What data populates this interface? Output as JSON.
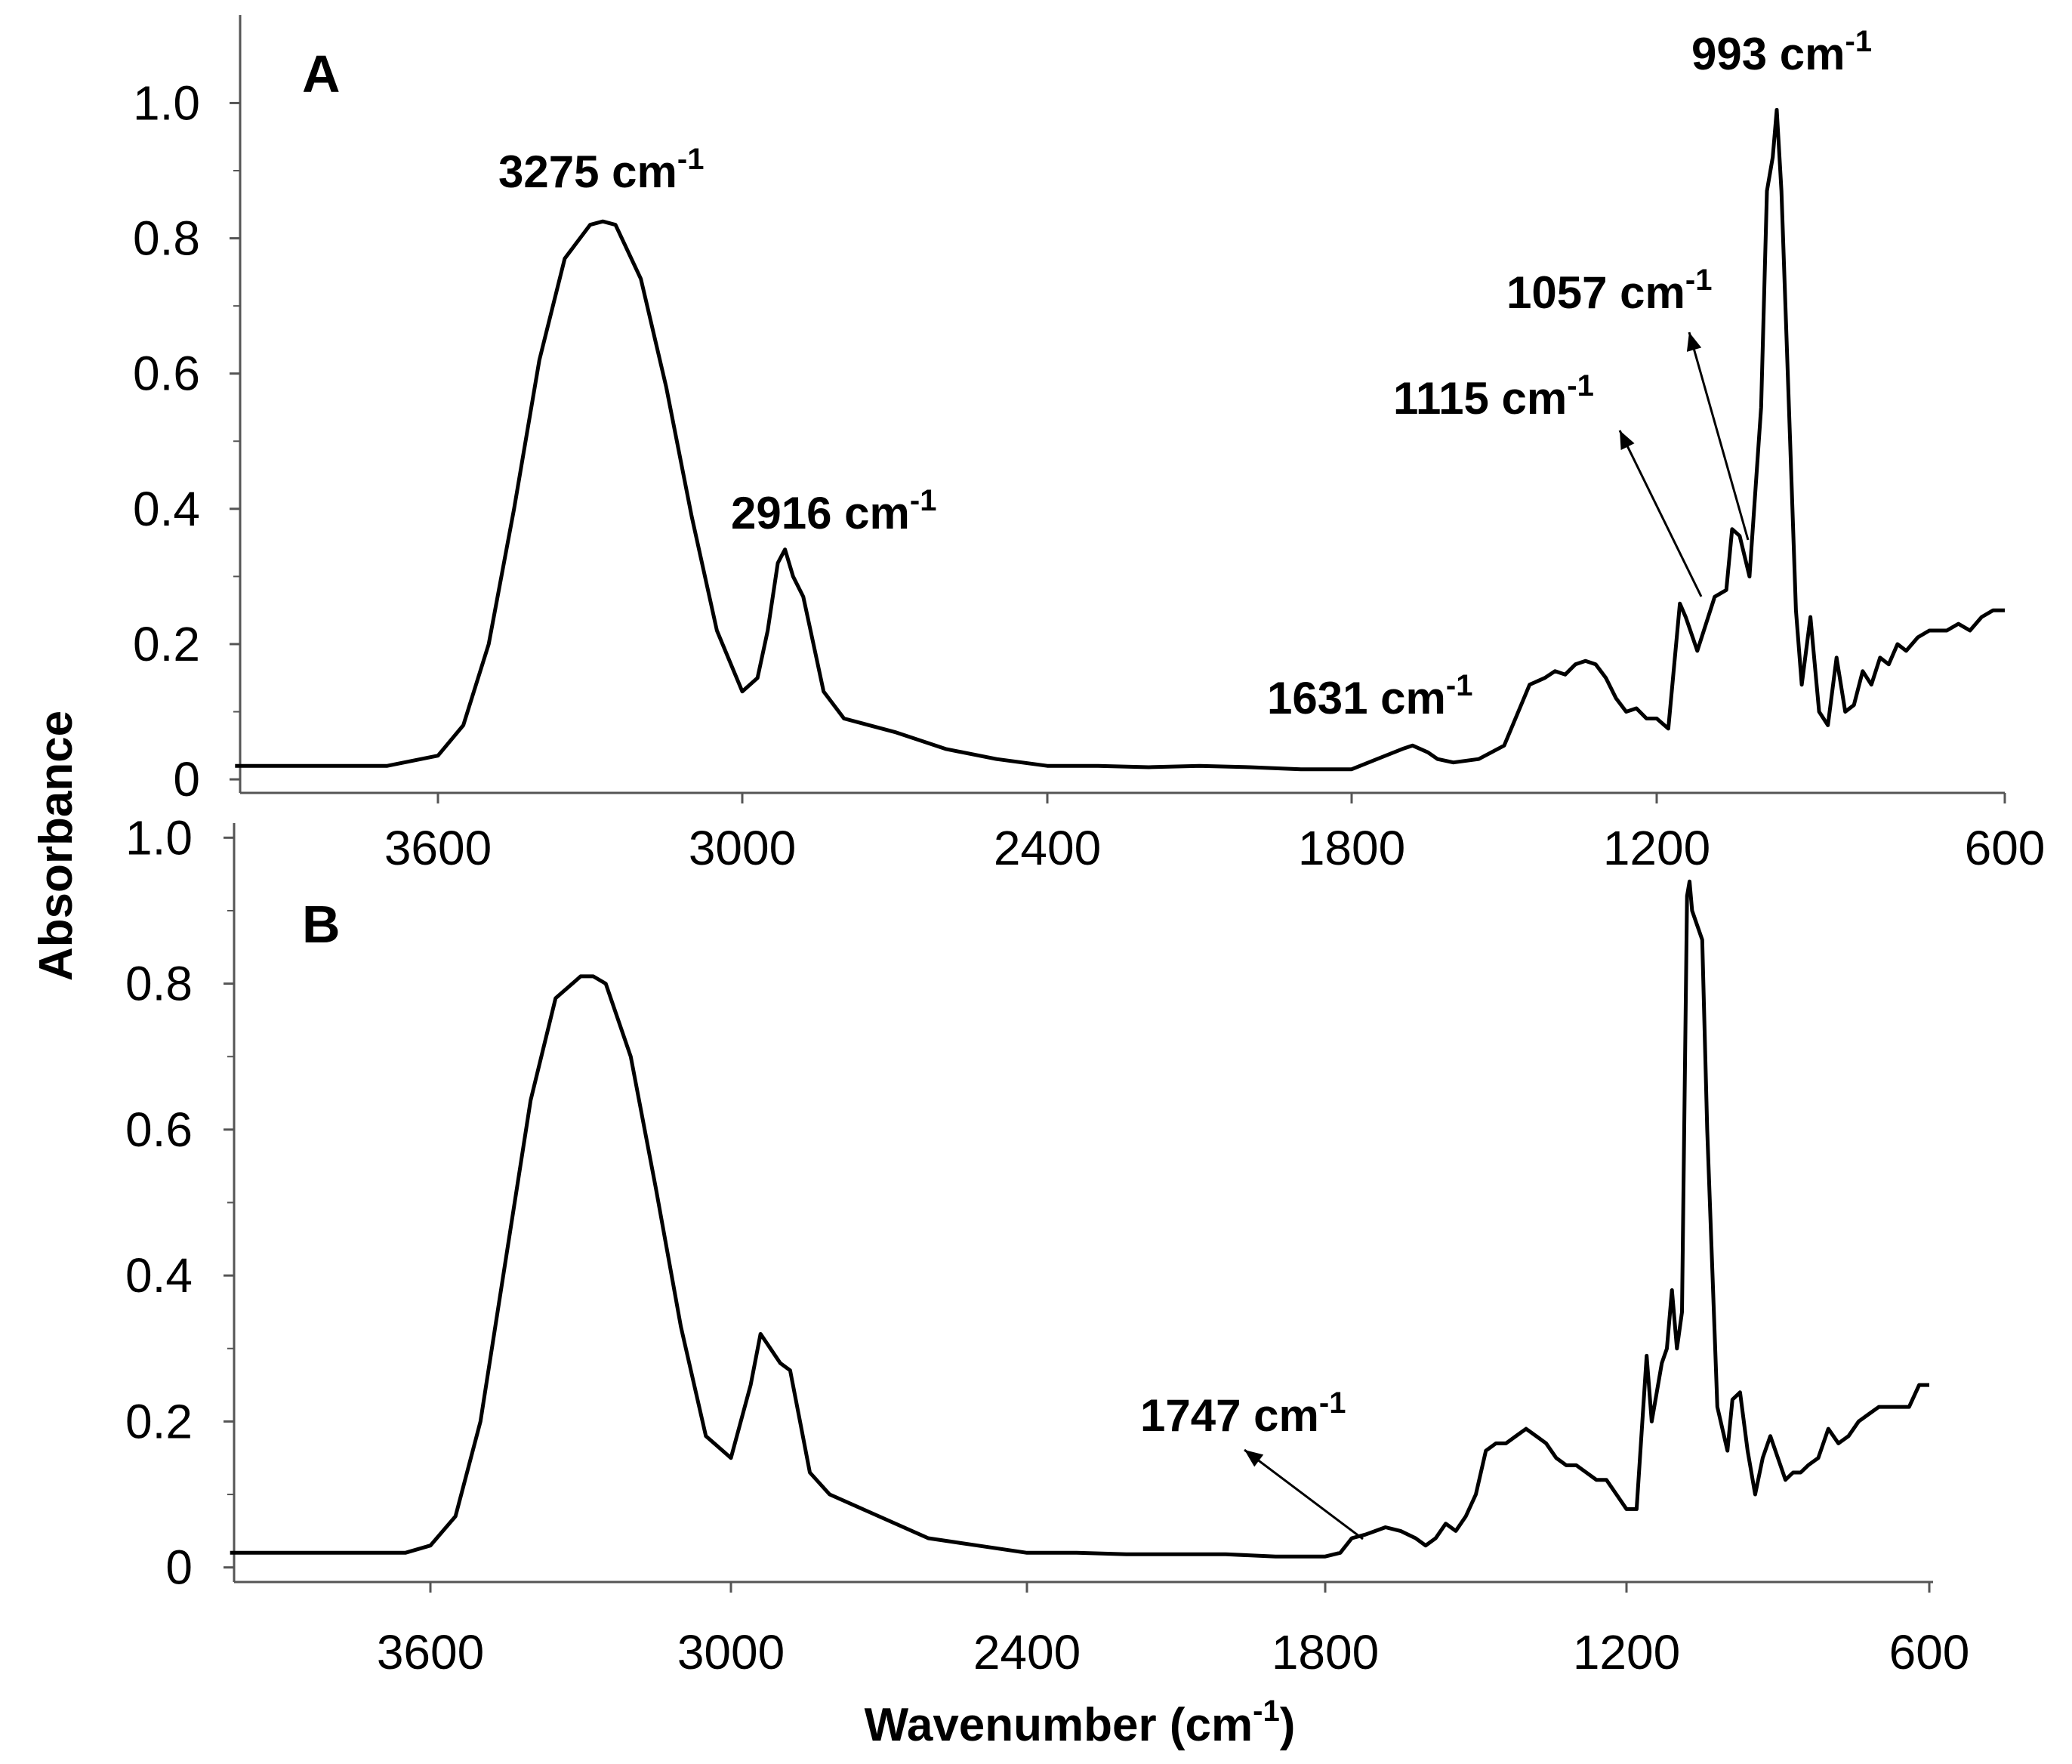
{
  "figure": {
    "ylabel": "Absorbance",
    "xlabel_main": "Wavenumber (cm",
    "xlabel_sup": "-1",
    "xlabel_tail": ")"
  },
  "chart_data": [
    {
      "type": "line",
      "panel": "A",
      "xlabel": "Wavenumber (cm-1)",
      "ylabel": "Absorbance",
      "xlim": [
        4000,
        600
      ],
      "ylim": [
        -0.02,
        1.13
      ],
      "x_ticks": [
        3600,
        3000,
        2400,
        1800,
        1200,
        600
      ],
      "y_ticks": [
        0,
        0.2,
        0.4,
        0.6,
        0.8,
        1.0
      ],
      "y_tick_labels": [
        "0",
        "0.2",
        "0.4",
        "0.6",
        "0.8",
        "1.0"
      ],
      "series": [
        {
          "name": "A",
          "x": [
            4000,
            3800,
            3700,
            3600,
            3550,
            3500,
            3450,
            3400,
            3350,
            3300,
            3275,
            3250,
            3200,
            3150,
            3100,
            3050,
            3000,
            2970,
            2950,
            2930,
            2916,
            2900,
            2880,
            2860,
            2840,
            2800,
            2700,
            2600,
            2500,
            2400,
            2300,
            2200,
            2100,
            2000,
            1900,
            1800,
            1750,
            1700,
            1680,
            1650,
            1631,
            1600,
            1550,
            1500,
            1450,
            1420,
            1400,
            1380,
            1360,
            1340,
            1320,
            1300,
            1280,
            1260,
            1240,
            1220,
            1200,
            1180,
            1160,
            1150,
            1130,
            1115,
            1100,
            1080,
            1070,
            1057,
            1040,
            1020,
            1010,
            1000,
            993,
            985,
            970,
            960,
            950,
            935,
            920,
            905,
            890,
            875,
            860,
            845,
            830,
            815,
            800,
            785,
            770,
            750,
            730,
            700,
            680,
            660,
            640,
            620,
            600
          ],
          "values": [
            0.02,
            0.02,
            0.02,
            0.035,
            0.08,
            0.2,
            0.4,
            0.62,
            0.77,
            0.82,
            0.825,
            0.82,
            0.74,
            0.58,
            0.39,
            0.22,
            0.13,
            0.15,
            0.22,
            0.32,
            0.34,
            0.3,
            0.27,
            0.2,
            0.13,
            0.09,
            0.07,
            0.045,
            0.03,
            0.02,
            0.02,
            0.018,
            0.02,
            0.018,
            0.015,
            0.015,
            0.03,
            0.045,
            0.05,
            0.04,
            0.03,
            0.025,
            0.03,
            0.05,
            0.14,
            0.15,
            0.16,
            0.155,
            0.17,
            0.175,
            0.17,
            0.15,
            0.12,
            0.1,
            0.105,
            0.09,
            0.09,
            0.075,
            0.26,
            0.24,
            0.19,
            0.23,
            0.27,
            0.28,
            0.37,
            0.36,
            0.3,
            0.55,
            0.87,
            0.92,
            0.99,
            0.87,
            0.5,
            0.25,
            0.14,
            0.24,
            0.1,
            0.08,
            0.18,
            0.1,
            0.11,
            0.16,
            0.14,
            0.18,
            0.17,
            0.2,
            0.19,
            0.21,
            0.22,
            0.22,
            0.23,
            0.22,
            0.24,
            0.25,
            0.25
          ]
        }
      ],
      "annotations": [
        {
          "text": "3275 cm",
          "sup": "-1",
          "x": 3275
        },
        {
          "text": "2916 cm",
          "sup": "-1",
          "x": 2916
        },
        {
          "text": "1631 cm",
          "sup": "-1",
          "x": 1631
        },
        {
          "text": "1115 cm",
          "sup": "-1",
          "x": 1115,
          "arrow": true
        },
        {
          "text": "1057 cm",
          "sup": "-1",
          "x": 1057,
          "arrow": true
        },
        {
          "text": "993 cm",
          "sup": "-1",
          "x": 993
        }
      ]
    },
    {
      "type": "line",
      "panel": "B",
      "xlabel": "Wavenumber (cm-1)",
      "ylabel": "Absorbance",
      "xlim": [
        4000,
        600
      ],
      "ylim": [
        -0.02,
        1.02
      ],
      "x_ticks": [
        3600,
        3000,
        2400,
        1800,
        1200,
        600
      ],
      "y_ticks": [
        0,
        0.2,
        0.4,
        0.6,
        0.8,
        1.0
      ],
      "y_tick_labels": [
        "0",
        "0.2",
        "0.4",
        "0.6",
        "0.8",
        "1.0"
      ],
      "series": [
        {
          "name": "B",
          "x": [
            4000,
            3800,
            3650,
            3600,
            3550,
            3500,
            3450,
            3400,
            3350,
            3300,
            3275,
            3250,
            3200,
            3150,
            3100,
            3050,
            3000,
            2960,
            2940,
            2920,
            2900,
            2880,
            2860,
            2840,
            2800,
            2700,
            2600,
            2500,
            2400,
            2300,
            2200,
            2100,
            2000,
            1900,
            1800,
            1770,
            1747,
            1720,
            1700,
            1680,
            1650,
            1620,
            1600,
            1580,
            1560,
            1540,
            1520,
            1500,
            1480,
            1460,
            1440,
            1420,
            1400,
            1380,
            1360,
            1340,
            1320,
            1300,
            1280,
            1260,
            1240,
            1220,
            1200,
            1180,
            1160,
            1150,
            1140,
            1130,
            1120,
            1110,
            1100,
            1090,
            1080,
            1075,
            1070,
            1060,
            1050,
            1040,
            1020,
            1000,
            990,
            975,
            960,
            945,
            930,
            915,
            900,
            885,
            870,
            855,
            840,
            820,
            800,
            780,
            760,
            740,
            720,
            700,
            680,
            660,
            640,
            620,
            600
          ],
          "values": [
            0.02,
            0.02,
            0.02,
            0.03,
            0.07,
            0.2,
            0.42,
            0.64,
            0.78,
            0.81,
            0.81,
            0.8,
            0.7,
            0.52,
            0.33,
            0.18,
            0.15,
            0.25,
            0.32,
            0.3,
            0.28,
            0.27,
            0.2,
            0.13,
            0.1,
            0.07,
            0.04,
            0.03,
            0.02,
            0.02,
            0.018,
            0.018,
            0.018,
            0.015,
            0.015,
            0.02,
            0.04,
            0.045,
            0.05,
            0.055,
            0.05,
            0.04,
            0.03,
            0.04,
            0.06,
            0.05,
            0.07,
            0.1,
            0.16,
            0.17,
            0.17,
            0.18,
            0.19,
            0.18,
            0.17,
            0.15,
            0.14,
            0.14,
            0.13,
            0.12,
            0.12,
            0.1,
            0.08,
            0.08,
            0.29,
            0.2,
            0.24,
            0.28,
            0.3,
            0.38,
            0.3,
            0.35,
            0.92,
            0.94,
            0.9,
            0.88,
            0.86,
            0.6,
            0.22,
            0.16,
            0.23,
            0.24,
            0.16,
            0.1,
            0.15,
            0.18,
            0.15,
            0.12,
            0.13,
            0.13,
            0.14,
            0.15,
            0.19,
            0.17,
            0.18,
            0.2,
            0.21,
            0.22,
            0.22,
            0.22,
            0.22,
            0.25,
            0.25
          ]
        }
      ],
      "annotations": [
        {
          "text": "1747 cm",
          "sup": "-1",
          "x": 1747,
          "arrow": true
        }
      ]
    }
  ]
}
